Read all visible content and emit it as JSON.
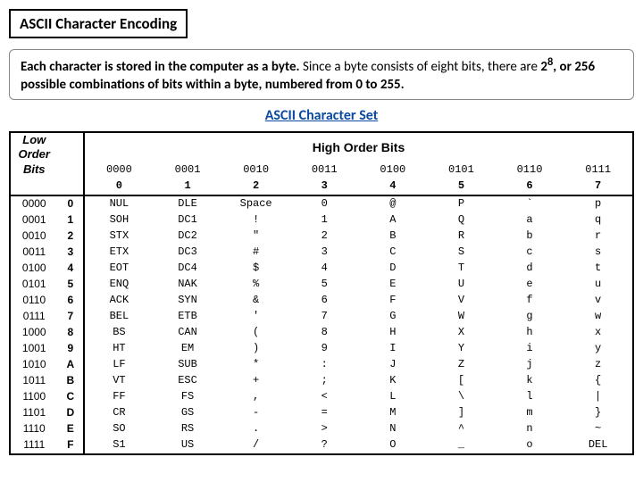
{
  "title": "ASCII Character Encoding",
  "description": {
    "bold_lead": "Each character is stored in the computer as a byte.",
    "rest1": " Since a byte consists of eight bits, there are ",
    "exp_base": "2",
    "exp_sup": "8",
    "rest2": ", or 256 possible combinations of bits within a byte, numbered from 0 to 255."
  },
  "subtitle": "ASCII Character Set",
  "labels": {
    "high_order": "High Order Bits",
    "low_order": "Low Order",
    "low_order2": "Bits"
  },
  "high_bits": [
    "0000",
    "0001",
    "0010",
    "0011",
    "0100",
    "0101",
    "0110",
    "0111"
  ],
  "high_hex": [
    "0",
    "1",
    "2",
    "3",
    "4",
    "5",
    "6",
    "7"
  ],
  "low_bits": [
    "0000",
    "0001",
    "0010",
    "0011",
    "0100",
    "0101",
    "0110",
    "0111",
    "1000",
    "1001",
    "1010",
    "1011",
    "1100",
    "1101",
    "1110",
    "1111"
  ],
  "low_hex": [
    "0",
    "1",
    "2",
    "3",
    "4",
    "5",
    "6",
    "7",
    "8",
    "9",
    "A",
    "B",
    "C",
    "D",
    "E",
    "F"
  ],
  "columns": [
    [
      "NUL",
      "SOH",
      "STX",
      "ETX",
      "EOT",
      "ENQ",
      "ACK",
      "BEL",
      "BS",
      "HT",
      "LF",
      "VT",
      "FF",
      "CR",
      "SO",
      "S1"
    ],
    [
      "DLE",
      "DC1",
      "DC2",
      "DC3",
      "DC4",
      "NAK",
      "SYN",
      "ETB",
      "CAN",
      "EM",
      "SUB",
      "ESC",
      "FS",
      "GS",
      "RS",
      "US"
    ],
    [
      "Space",
      "!",
      "\"",
      "#",
      "$",
      "%",
      "&",
      "'",
      "(",
      ")",
      "*",
      "+",
      ",",
      "-",
      ".",
      "/"
    ],
    [
      "0",
      "1",
      "2",
      "3",
      "4",
      "5",
      "6",
      "7",
      "8",
      "9",
      ":",
      ";",
      "<",
      "=",
      ">",
      "?"
    ],
    [
      "@",
      "A",
      "B",
      "C",
      "D",
      "E",
      "F",
      "G",
      "H",
      "I",
      "J",
      "K",
      "L",
      "M",
      "N",
      "O"
    ],
    [
      "P",
      "Q",
      "R",
      "S",
      "T",
      "U",
      "V",
      "W",
      "X",
      "Y",
      "Z",
      "[",
      "\\",
      "]",
      "^",
      "_"
    ],
    [
      "`",
      "a",
      "b",
      "c",
      "d",
      "e",
      "f",
      "g",
      "h",
      "i",
      "j",
      "k",
      "l",
      "m",
      "n",
      "o"
    ],
    [
      "p",
      "q",
      "r",
      "s",
      "t",
      "u",
      "v",
      "w",
      "x",
      "y",
      "z",
      "{",
      "|",
      "}",
      "~",
      "DEL"
    ]
  ],
  "colors": {
    "subtitle": "#0b4aa0",
    "border": "#000000",
    "text": "#000000"
  }
}
